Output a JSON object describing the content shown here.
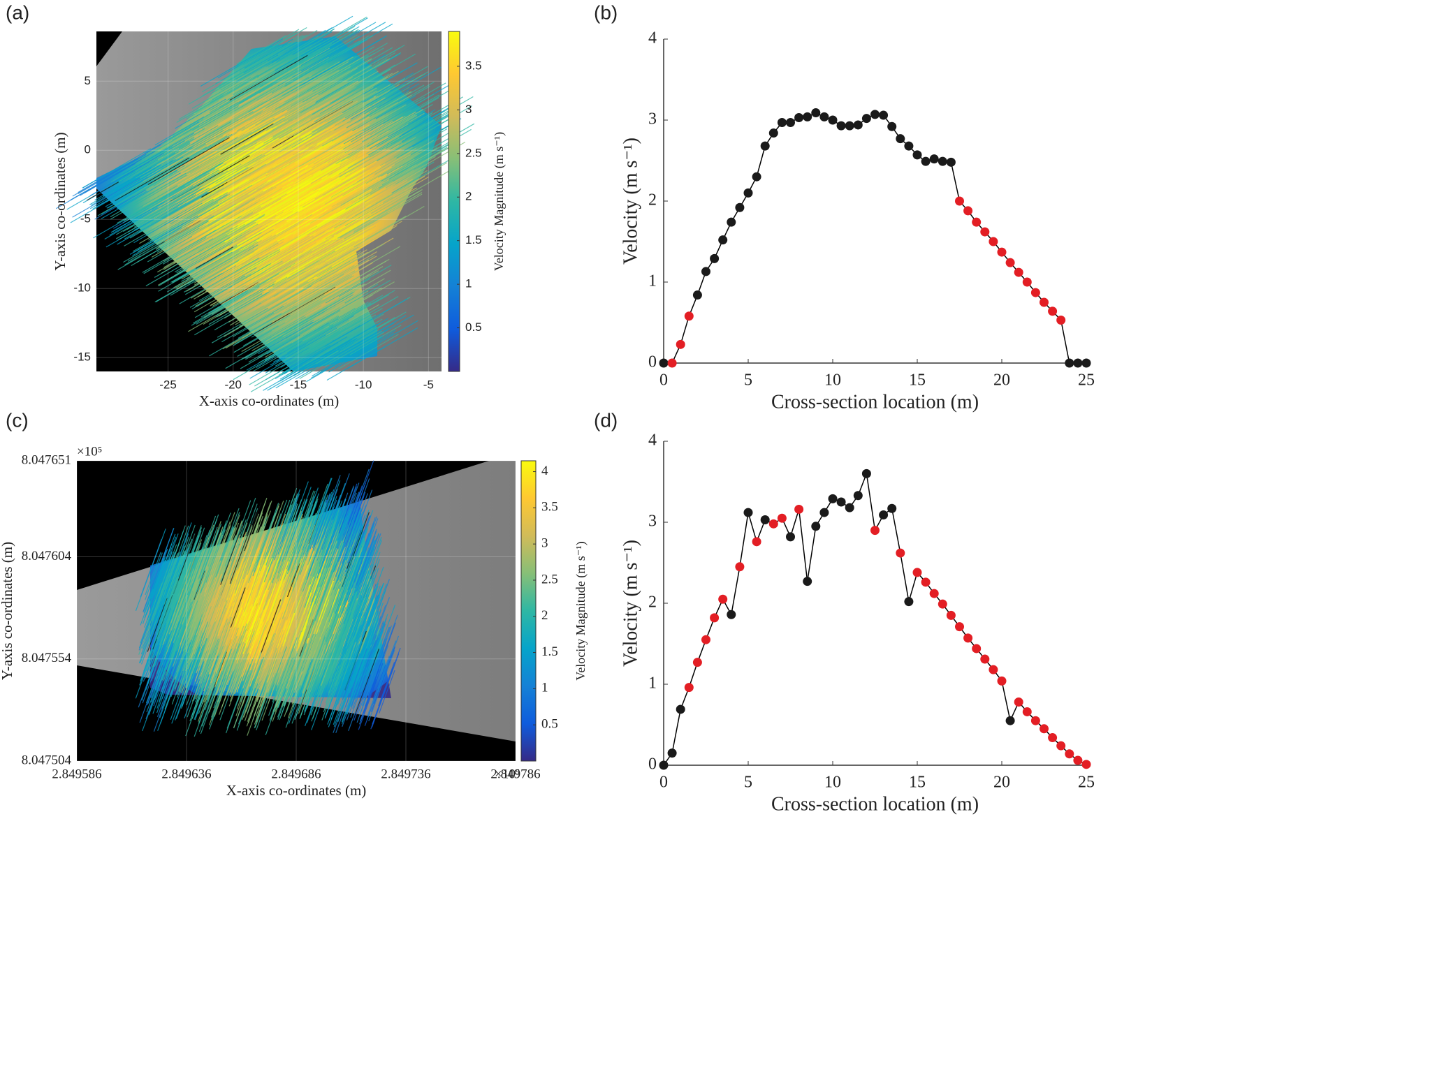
{
  "chart_data": [
    {
      "type": "quiver",
      "panel_label": "(a)",
      "xlabel": "X-axis co-ordinates (m)",
      "ylabel": "Y-axis co-ordinates (m)",
      "xlim": [
        -30.5,
        -4
      ],
      "ylim": [
        -16,
        8.6
      ],
      "xticks": [
        -25,
        -20,
        -15,
        -10,
        -5
      ],
      "yticks": [
        -15,
        -10,
        -5,
        0,
        5
      ],
      "grid": true,
      "colormap": [
        "#352a87",
        "#0f5cdd",
        "#1481d6",
        "#06a4ca",
        "#2eb7a4",
        "#87bf77",
        "#d1bb59",
        "#fec832",
        "#f9fb0e"
      ],
      "colorbar": {
        "label": "Velocity Magnitude (m s⁻¹)",
        "clim": [
          0,
          3.9
        ],
        "ticks": [
          0.5,
          1,
          1.5,
          2,
          2.5,
          3,
          3.5
        ]
      }
    },
    {
      "type": "line",
      "panel_label": "(b)",
      "xlabel": "Cross-section location (m)",
      "ylabel": "Velocity (m s⁻¹)",
      "xlim": [
        0,
        25
      ],
      "ylim": [
        0,
        4
      ],
      "xticks": [
        0,
        5,
        10,
        15,
        20,
        25
      ],
      "yticks": [
        0,
        1,
        2,
        3,
        4
      ],
      "x": [
        0,
        0.5,
        1,
        1.5,
        2,
        2.5,
        3,
        3.5,
        4,
        4.5,
        5,
        5.5,
        6,
        6.5,
        7,
        7.5,
        8,
        8.5,
        9,
        9.5,
        10,
        10.5,
        11,
        11.5,
        12,
        12.5,
        13,
        13.5,
        14,
        14.5,
        15,
        15.5,
        16,
        16.5,
        17,
        17.5,
        18,
        18.5,
        19,
        19.5,
        20,
        20.5,
        21,
        21.5,
        22,
        22.5,
        23,
        23.5,
        24,
        24.5,
        25
      ],
      "series": [
        {
          "color": "#000000",
          "values": [
            0,
            0,
            0.23,
            0.58,
            0.84,
            1.13,
            1.29,
            1.52,
            1.74,
            1.92,
            2.1,
            2.3,
            2.68,
            2.84,
            2.97,
            2.97,
            3.03,
            3.04,
            3.09,
            3.04,
            3.0,
            2.93,
            2.93,
            2.94,
            3.02,
            3.07,
            3.06,
            2.92,
            2.77,
            2.68,
            2.57,
            2.49,
            2.52,
            2.49,
            2.48,
            2.0,
            1.88,
            1.74,
            1.62,
            1.5,
            1.37,
            1.24,
            1.12,
            1.0,
            0.87,
            0.75,
            0.64,
            0.53,
            0,
            0,
            0
          ],
          "marker_colors": [
            "#1a1a1a",
            "#e31e24",
            "#e31e24",
            "#e31e24",
            "#1a1a1a",
            "#1a1a1a",
            "#1a1a1a",
            "#1a1a1a",
            "#1a1a1a",
            "#1a1a1a",
            "#1a1a1a",
            "#1a1a1a",
            "#1a1a1a",
            "#1a1a1a",
            "#1a1a1a",
            "#1a1a1a",
            "#1a1a1a",
            "#1a1a1a",
            "#1a1a1a",
            "#1a1a1a",
            "#1a1a1a",
            "#1a1a1a",
            "#1a1a1a",
            "#1a1a1a",
            "#1a1a1a",
            "#1a1a1a",
            "#1a1a1a",
            "#1a1a1a",
            "#1a1a1a",
            "#1a1a1a",
            "#1a1a1a",
            "#1a1a1a",
            "#1a1a1a",
            "#1a1a1a",
            "#1a1a1a",
            "#e31e24",
            "#e31e24",
            "#e31e24",
            "#e31e24",
            "#e31e24",
            "#e31e24",
            "#e31e24",
            "#e31e24",
            "#e31e24",
            "#e31e24",
            "#e31e24",
            "#e31e24",
            "#e31e24",
            "#1a1a1a",
            "#1a1a1a",
            "#1a1a1a"
          ]
        }
      ]
    },
    {
      "type": "quiver",
      "panel_label": "(c)",
      "xlabel": "X-axis co-ordinates (m)",
      "ylabel": "Y-axis co-ordinates (m)",
      "axis_multiplier": "×10⁵",
      "xlim": [
        2.849586,
        2.849786
      ],
      "ylim": [
        8.047504,
        8.047651
      ],
      "xticks": [
        2.849586,
        2.849636,
        2.849686,
        2.849736,
        2.849786
      ],
      "yticks": [
        8.047504,
        8.047554,
        8.047604,
        8.047651
      ],
      "grid": true,
      "colormap": [
        "#352a87",
        "#0f5cdd",
        "#1481d6",
        "#06a4ca",
        "#2eb7a4",
        "#87bf77",
        "#d1bb59",
        "#fec832",
        "#f9fb0e"
      ],
      "colorbar": {
        "label": "Velocity Magnitude (m s⁻¹)",
        "clim": [
          0,
          4.15
        ],
        "ticks": [
          0.5,
          1,
          1.5,
          2,
          2.5,
          3,
          3.5,
          4
        ]
      }
    },
    {
      "type": "line",
      "panel_label": "(d)",
      "xlabel": "Cross-section location (m)",
      "ylabel": "Velocity (m s⁻¹)",
      "xlim": [
        0,
        25
      ],
      "ylim": [
        0,
        4
      ],
      "xticks": [
        0,
        5,
        10,
        15,
        20,
        25
      ],
      "yticks": [
        0,
        1,
        2,
        3,
        4
      ],
      "x": [
        0,
        0.5,
        1,
        1.5,
        2,
        2.5,
        3,
        3.5,
        4,
        4.5,
        5,
        5.5,
        6,
        6.5,
        7,
        7.5,
        8,
        8.5,
        9,
        9.5,
        10,
        10.5,
        11,
        11.5,
        12,
        12.5,
        13,
        13.5,
        14,
        14.5,
        15,
        15.5,
        16,
        16.5,
        17,
        17.5,
        18,
        18.5,
        19,
        19.5,
        20,
        20.5,
        21,
        21.5,
        22,
        22.5,
        23,
        23.5,
        24,
        24.5,
        25
      ],
      "series": [
        {
          "color": "#000000",
          "values": [
            0,
            0.15,
            0.69,
            0.96,
            1.27,
            1.55,
            1.82,
            2.05,
            1.86,
            2.45,
            3.12,
            2.76,
            3.03,
            2.98,
            3.05,
            2.82,
            3.16,
            2.27,
            2.95,
            3.12,
            3.29,
            3.25,
            3.18,
            3.33,
            3.6,
            2.9,
            3.09,
            3.17,
            2.62,
            2.02,
            2.38,
            2.26,
            2.12,
            1.99,
            1.85,
            1.71,
            1.57,
            1.44,
            1.31,
            1.18,
            1.04,
            0.55,
            0.78,
            0.66,
            0.55,
            0.45,
            0.34,
            0.24,
            0.14,
            0.06,
            0.01
          ],
          "marker_colors": [
            "#1a1a1a",
            "#1a1a1a",
            "#1a1a1a",
            "#e31e24",
            "#e31e24",
            "#e31e24",
            "#e31e24",
            "#e31e24",
            "#1a1a1a",
            "#e31e24",
            "#1a1a1a",
            "#e31e24",
            "#1a1a1a",
            "#e31e24",
            "#e31e24",
            "#1a1a1a",
            "#e31e24",
            "#1a1a1a",
            "#1a1a1a",
            "#1a1a1a",
            "#1a1a1a",
            "#1a1a1a",
            "#1a1a1a",
            "#1a1a1a",
            "#1a1a1a",
            "#e31e24",
            "#1a1a1a",
            "#1a1a1a",
            "#e31e24",
            "#1a1a1a",
            "#e31e24",
            "#e31e24",
            "#e31e24",
            "#e31e24",
            "#e31e24",
            "#e31e24",
            "#e31e24",
            "#e31e24",
            "#e31e24",
            "#e31e24",
            "#e31e24",
            "#1a1a1a",
            "#e31e24",
            "#e31e24",
            "#e31e24",
            "#e31e24",
            "#e31e24",
            "#e31e24",
            "#e31e24",
            "#e31e24",
            "#e31e24"
          ]
        }
      ]
    }
  ]
}
